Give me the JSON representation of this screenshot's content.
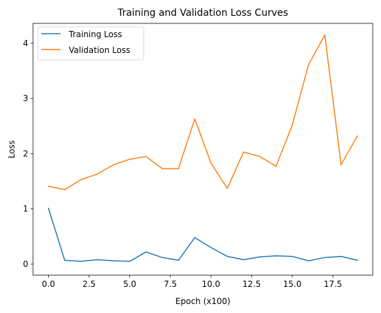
{
  "chart_data": {
    "type": "line",
    "title": "Training and Validation Loss Curves",
    "xlabel": "Epoch (x100)",
    "ylabel": "Loss",
    "xlim": [
      -0.95,
      19.95
    ],
    "ylim": [
      -0.2,
      4.36
    ],
    "xticks": [
      0,
      2.5,
      5,
      7.5,
      10,
      12.5,
      15,
      17.5
    ],
    "xtick_labels": [
      "0.0",
      "2.5",
      "5.0",
      "7.5",
      "10.0",
      "12.5",
      "15.0",
      "17.5"
    ],
    "yticks": [
      0,
      1,
      2,
      3,
      4
    ],
    "ytick_labels": [
      "0",
      "1",
      "2",
      "3",
      "4"
    ],
    "grid": false,
    "legend_position": "top-left",
    "x": [
      0,
      1,
      2,
      3,
      4,
      5,
      6,
      7,
      8,
      9,
      10,
      11,
      12,
      13,
      14,
      15,
      16,
      17,
      18,
      19
    ],
    "series": [
      {
        "name": "Training Loss",
        "color": "#1f77b4",
        "values": [
          1.01,
          0.07,
          0.05,
          0.08,
          0.06,
          0.05,
          0.22,
          0.12,
          0.07,
          0.48,
          0.3,
          0.14,
          0.08,
          0.13,
          0.15,
          0.14,
          0.06,
          0.12,
          0.14,
          0.07
        ]
      },
      {
        "name": "Validation Loss",
        "color": "#ff7f0e",
        "values": [
          1.41,
          1.35,
          1.53,
          1.63,
          1.8,
          1.9,
          1.95,
          1.73,
          1.73,
          2.63,
          1.83,
          1.37,
          2.03,
          1.95,
          1.77,
          2.52,
          3.61,
          4.15,
          1.8,
          2.32
        ]
      }
    ]
  }
}
